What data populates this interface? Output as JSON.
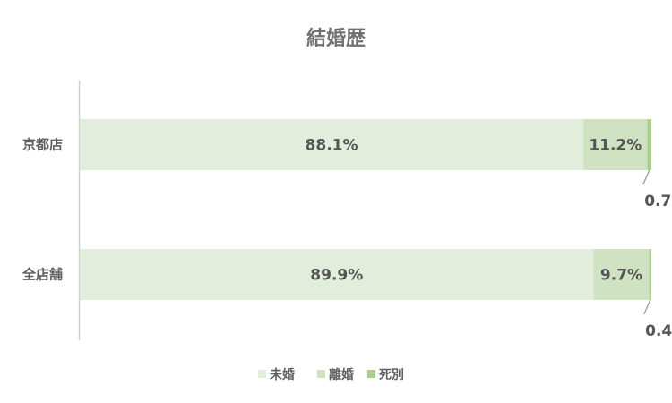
{
  "chart_data": {
    "type": "bar",
    "orientation": "horizontal",
    "stacked": "percent",
    "title": "結婚歴",
    "categories": [
      "京都店",
      "全店舗"
    ],
    "series": [
      {
        "name": "未婚",
        "values": [
          88.1,
          89.9
        ],
        "color": "#e2eddb",
        "labels": [
          "88.1%",
          "89.9%"
        ]
      },
      {
        "name": "離婚",
        "values": [
          11.2,
          9.7
        ],
        "color": "#cfe3c3",
        "labels": [
          "11.2%",
          "9.7%"
        ]
      },
      {
        "name": "死別",
        "values": [
          0.7,
          0.4
        ],
        "color": "#a9cf8e",
        "labels": [
          "0.7%",
          "0.4%"
        ]
      }
    ],
    "xlim": [
      0,
      100
    ],
    "grid": false,
    "legend_position": "bottom"
  }
}
